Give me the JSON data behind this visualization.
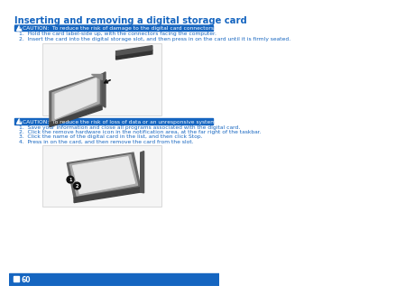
{
  "bg_color": "#ffffff",
  "title": "Inserting and removing a digital storage card",
  "title_color": "#1565c0",
  "title_fontsize": 7.2,
  "caution_bg": "#1565c0",
  "caution_text_color": "#ffffff",
  "text_color": "#1565c0",
  "line_color": "#1565c0",
  "s1_caution": "CAUTION:  To reduce the risk of damage to the digital card connectors, use minimal force to insert a digital card.",
  "s1_step1": "1.  Hold the card label-side up, with the connectors facing the computer.",
  "s1_step2": "2.  Insert the card into the digital storage slot, and then press in on the card until it is firmly seated.",
  "s2_caution": "CAUTION:",
  "s2_caution2": "  To reduce the risk of loss of data or an unresponsive system, use the following procedure to safely remove the digital card.",
  "s2_step1": "1.  Save your information and close all programs associated with the digital card.",
  "s2_step2": "2.  Click the remove hardware icon in the notification area, at the far right of the taskbar.",
  "s2_step3": "3.  Click the name of the digital card in the list, and then click Stop.",
  "s2_step4": "4.  Press in on the card, and then remove the card from the slot.",
  "footer_text": "60",
  "footer_bg": "#1565c0",
  "img1_bg": "#ffffff",
  "img2_bg": "#ffffff",
  "card_body": "#5a5a5a",
  "card_face": "#d8d8d8",
  "card_edge": "#3a3a3a",
  "card_shadow": "#888888",
  "slot_color": "#4a4a4a",
  "arrow_color": "#111111"
}
